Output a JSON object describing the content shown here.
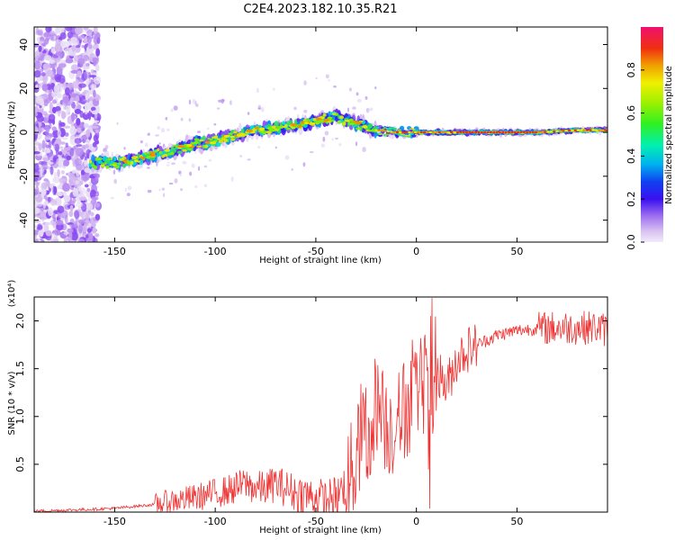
{
  "title": "C2E4.2023.182.10.35.R21",
  "chart_data": [
    {
      "type": "heatmap",
      "xlabel": "Height of straight line (km)",
      "ylabel": "Frequency (Hz)",
      "xlim": [
        -190,
        95
      ],
      "ylim": [
        -50,
        48
      ],
      "x_ticks": [
        -150,
        -100,
        -50,
        0,
        50
      ],
      "x_tick_labels": [
        "-150",
        "-100",
        "-50",
        "0",
        "50"
      ],
      "y_ticks": [
        -40,
        -20,
        0,
        20,
        40
      ],
      "y_tick_labels": [
        "-40",
        "-20",
        "0",
        "20",
        "40"
      ],
      "ridge": {
        "x": [
          -162,
          -150,
          -140,
          -130,
          -120,
          -110,
          -100,
          -90,
          -80,
          -70,
          -60,
          -50,
          -40,
          -30,
          -20,
          -10,
          0,
          10,
          20,
          40,
          60,
          80,
          95
        ],
        "y": [
          -14,
          -14,
          -13,
          -10,
          -8,
          -5,
          -4,
          -1,
          1,
          2,
          3,
          5,
          7,
          4,
          1,
          0,
          0,
          0,
          0,
          0,
          0,
          1,
          1
        ]
      },
      "colorbar": {
        "label": "Normalized spectral amplitude",
        "range": [
          0,
          1
        ],
        "ticks": [
          0.0,
          0.2,
          0.4,
          0.6,
          0.8
        ],
        "tick_labels": [
          "0.0",
          "0.2",
          "0.4",
          "0.6",
          "0.8"
        ]
      }
    },
    {
      "type": "line",
      "xlabel": "Height of straight line (km)",
      "ylabel": "SNR (10 * v/v)",
      "y_multiplier": "(x10⁴)",
      "xlim": [
        -190,
        95
      ],
      "ylim": [
        0,
        2.25
      ],
      "x_ticks": [
        -150,
        -100,
        -50,
        0,
        50
      ],
      "x_tick_labels": [
        "-150",
        "-100",
        "-50",
        "0",
        "50"
      ],
      "y_ticks": [
        0.5,
        1.0,
        1.5,
        2.0
      ],
      "y_tick_labels": [
        "0.5",
        "1.0",
        "1.5",
        "2.0"
      ],
      "color": "#ee3333",
      "series": [
        {
          "x": [
            -190,
            -175,
            -160,
            -150,
            -140,
            -130,
            -120,
            -110,
            -100,
            -95,
            -90,
            -85,
            -80,
            -75,
            -70,
            -65,
            -60,
            -55,
            -50,
            -45,
            -40,
            -35,
            -30,
            -27,
            -24,
            -20,
            -15,
            -10,
            -5,
            0,
            5,
            7,
            8,
            10,
            15,
            20,
            25,
            30,
            40,
            50,
            60,
            70,
            80,
            90,
            95
          ],
          "y": [
            0.01,
            0.02,
            0.03,
            0.04,
            0.06,
            0.08,
            0.12,
            0.15,
            0.2,
            0.22,
            0.25,
            0.3,
            0.25,
            0.25,
            0.3,
            0.25,
            0.2,
            0.18,
            0.15,
            0.12,
            0.15,
            0.3,
            0.5,
            0.9,
            0.6,
            1.2,
            0.9,
            0.9,
            1.1,
            1.25,
            1.4,
            0.2,
            1.6,
            1.5,
            1.3,
            1.6,
            1.7,
            1.75,
            1.85,
            1.9,
            1.92,
            1.93,
            1.93,
            1.93,
            1.9
          ]
        }
      ]
    }
  ],
  "palette": {
    "rainbow": [
      "#e6dcf5",
      "#d4b8f0",
      "#b98ef0",
      "#8a4cf0",
      "#5a18f0",
      "#2a20f0",
      "#0090f0",
      "#00e0d0",
      "#30e060",
      "#80f000",
      "#e8e800",
      "#f09000",
      "#f03000",
      "#f0106a"
    ]
  }
}
